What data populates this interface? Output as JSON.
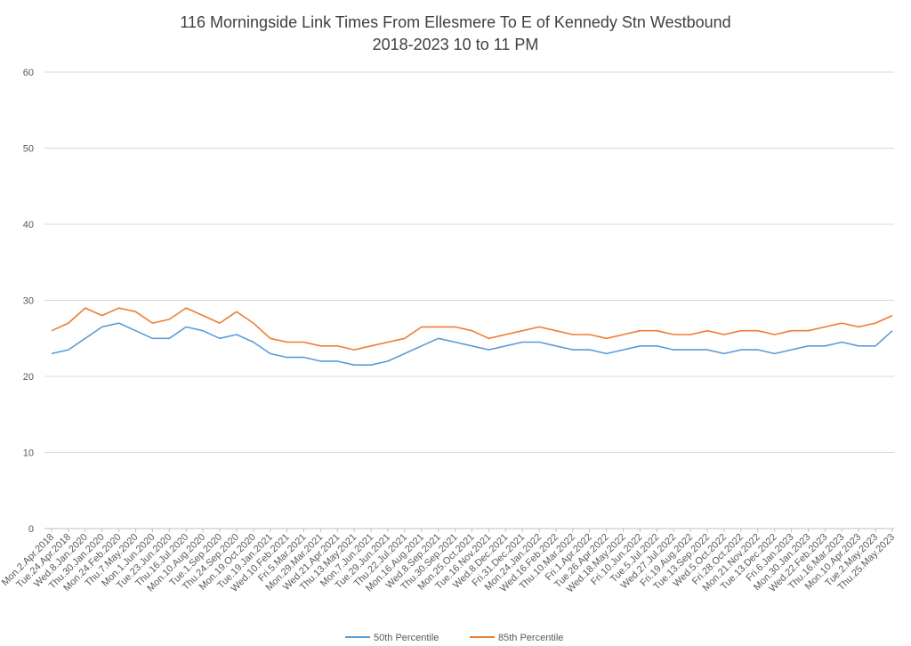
{
  "chart_data": {
    "type": "line",
    "title": "116 Morningside Link Times From Ellesmere To E of Kennedy Stn Westbound",
    "subtitle": "2018-2023 10 to 11 PM",
    "xlabel": "",
    "ylabel": "",
    "ylim": [
      0,
      60
    ],
    "yticks": [
      0,
      10,
      20,
      30,
      40,
      50,
      60
    ],
    "grid": true,
    "legend": "bottom",
    "x_categories": [
      "Mon.2.Apr.2018",
      "Tue.24.Apr.2018",
      "Wed.8.Jan.2020",
      "Thu.30.Jan.2020",
      "Mon.24.Feb.2020",
      "Thu.7.May.2020",
      "Mon.1.Jun.2020",
      "Tue.23.Jun.2020",
      "Thu.16.Jul.2020",
      "Mon.10.Aug.2020",
      "Tue.1.Sep.2020",
      "Thu.24.Sep.2020",
      "Mon.19.Oct.2020",
      "Tue.19.Jan.2021",
      "Wed.10.Feb.2021",
      "Fri.5.Mar.2021",
      "Mon.29.Mar.2021",
      "Wed.21.Apr.2021",
      "Thu.13.May.2021",
      "Mon.7.Jun.2021",
      "Tue.29.Jun.2021",
      "Thu.22.Jul.2021",
      "Mon.16.Aug.2021",
      "Wed.8.Sep.2021",
      "Thu.30.Sep.2021",
      "Mon.25.Oct.2021",
      "Tue.16.Nov.2021",
      "Wed.8.Dec.2021",
      "Fri.31.Dec.2021",
      "Mon.24.Jan.2022",
      "Wed.16.Feb.2022",
      "Thu.10.Mar.2022",
      "Fri.1.Apr.2022",
      "Tue.26.Apr.2022",
      "Wed.18.May.2022",
      "Fri.10.Jun.2022",
      "Tue.5.Jul.2022",
      "Wed.27.Jul.2022",
      "Fri.19.Aug.2022",
      "Tue.13.Sep.2022",
      "Wed.5.Oct.2022",
      "Fri.28.Oct.2022",
      "Mon.21.Nov.2022",
      "Tue.13.Dec.2022",
      "Fri.6.Jan.2023",
      "Mon.30.Jan.2023",
      "Wed.22.Feb.2023",
      "Thu.16.Mar.2023",
      "Mon.10.Apr.2023",
      "Tue.2.May.2023",
      "Thu.25.May.2023"
    ],
    "series": [
      {
        "name": "50th Percentile",
        "color": "#5B9BD5",
        "values": [
          23,
          23.5,
          25,
          26.5,
          27,
          26,
          25,
          25,
          26.5,
          26,
          25,
          25.5,
          24.5,
          23,
          22.5,
          22.5,
          22,
          22,
          21.5,
          21.5,
          22,
          23,
          24,
          25,
          24.5,
          24,
          23.5,
          24,
          24.5,
          24.5,
          24,
          23.5,
          23.5,
          23,
          23.5,
          24,
          24,
          23.5,
          23.5,
          23.5,
          23,
          23.5,
          23.5,
          23,
          23.5,
          24,
          24,
          24.5,
          24,
          24,
          26
        ]
      },
      {
        "name": "85th Percentile",
        "color": "#ED7D31",
        "values": [
          26,
          27,
          29,
          28,
          29,
          28.5,
          27,
          27.5,
          29,
          28,
          27,
          28.5,
          27,
          25,
          24.5,
          24.5,
          24,
          24,
          23.5,
          24,
          24.5,
          25,
          26.5,
          26.5,
          26.5,
          26,
          25,
          25.5,
          26,
          26.5,
          26,
          25.5,
          25.5,
          25,
          25.5,
          26,
          26,
          25.5,
          25.5,
          26,
          25.5,
          26,
          26,
          25.5,
          26,
          26,
          26.5,
          27,
          26.5,
          27,
          28
        ]
      }
    ]
  }
}
